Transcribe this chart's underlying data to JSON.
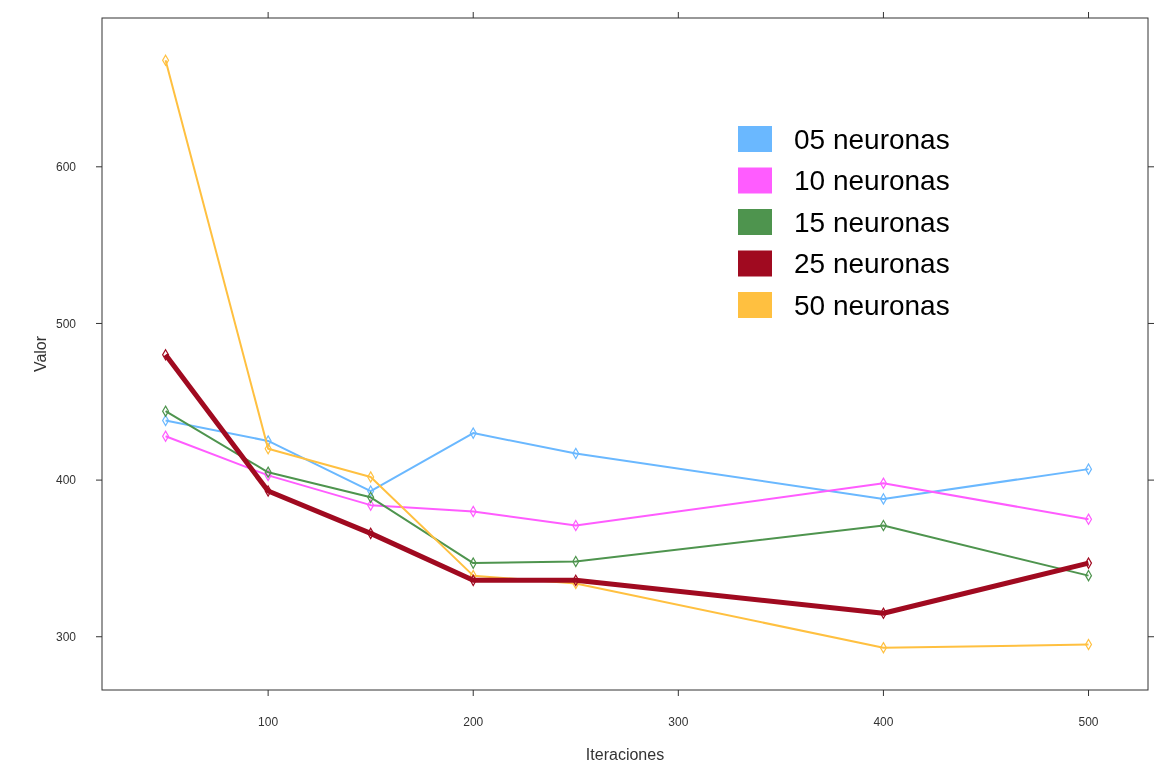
{
  "chart_data": {
    "type": "line",
    "xlabel": "Iteraciones",
    "ylabel": "Valor",
    "x": [
      50,
      100,
      150,
      200,
      250,
      400,
      500
    ],
    "xlim": [
      19,
      529
    ],
    "ylim": [
      266,
      695
    ],
    "xticks": [
      100,
      200,
      300,
      400,
      500
    ],
    "yticks": [
      300,
      400,
      500,
      600
    ],
    "marker": "diamond",
    "legend": "top right",
    "grid": false,
    "series": [
      {
        "name": "05 neuronas",
        "color": "#6ab8ff",
        "values": [
          438,
          425,
          393,
          430,
          417,
          388,
          407
        ]
      },
      {
        "name": "10 neuronas",
        "color": "#ff5cff",
        "values": [
          428,
          403,
          384,
          380,
          371,
          398,
          375
        ]
      },
      {
        "name": "15 neuronas",
        "color": "#4e944e",
        "values": [
          444,
          405,
          389,
          347,
          348,
          371,
          339
        ]
      },
      {
        "name": "25 neuronas",
        "color": "#a00a20",
        "values": [
          480,
          393,
          366,
          336,
          336,
          315,
          347
        ]
      },
      {
        "name": "50 neuronas",
        "color": "#ffc040",
        "values": [
          668,
          420,
          402,
          339,
          334,
          293,
          295
        ]
      }
    ]
  }
}
